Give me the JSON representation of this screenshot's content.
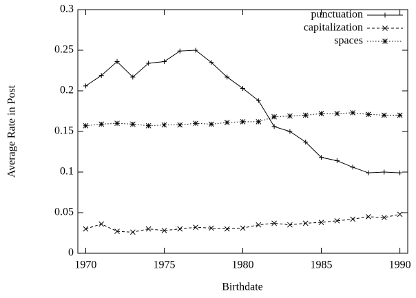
{
  "chart_data": {
    "type": "line",
    "x_label": "Birthdate",
    "y_label": "Average Rate in Post",
    "x": [
      1970,
      1971,
      1972,
      1973,
      1974,
      1975,
      1976,
      1977,
      1978,
      1979,
      1980,
      1981,
      1982,
      1983,
      1984,
      1985,
      1986,
      1987,
      1988,
      1989,
      1990
    ],
    "series": [
      {
        "name": "punctuation",
        "color": "#000000",
        "dash": "solid",
        "marker": "plus",
        "values": [
          0.206,
          0.219,
          0.236,
          0.217,
          0.234,
          0.236,
          0.249,
          0.25,
          0.235,
          0.217,
          0.203,
          0.188,
          0.156,
          0.15,
          0.137,
          0.118,
          0.114,
          0.106,
          0.099,
          0.1,
          0.099
        ]
      },
      {
        "name": "capitalization",
        "color": "#000000",
        "dash": "dashed",
        "marker": "cross",
        "values": [
          0.03,
          0.036,
          0.027,
          0.026,
          0.03,
          0.028,
          0.03,
          0.032,
          0.031,
          0.03,
          0.031,
          0.035,
          0.037,
          0.035,
          0.037,
          0.038,
          0.04,
          0.042,
          0.045,
          0.044,
          0.048
        ]
      },
      {
        "name": "spaces",
        "color": "#000000",
        "dash": "dotted",
        "marker": "star",
        "values": [
          0.157,
          0.159,
          0.16,
          0.159,
          0.157,
          0.158,
          0.158,
          0.16,
          0.159,
          0.161,
          0.162,
          0.162,
          0.168,
          0.169,
          0.17,
          0.172,
          0.172,
          0.173,
          0.171,
          0.17,
          0.17
        ]
      }
    ],
    "xlim": [
      1969.5,
      1990.5
    ],
    "xticks": [
      1970,
      1975,
      1980,
      1985,
      1990
    ],
    "ylim": [
      0,
      0.3
    ],
    "yticks": [
      0,
      0.05,
      0.1,
      0.15,
      0.2,
      0.25,
      0.3
    ],
    "legend": "top-right",
    "grid": false
  }
}
